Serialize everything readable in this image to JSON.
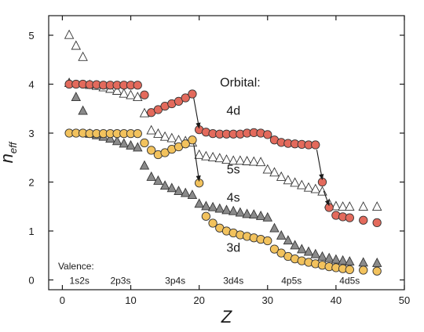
{
  "chart_data": {
    "type": "scatter",
    "xlabel": "Z",
    "ylabel": "n",
    "ylabel_sub": "eff",
    "xlim": [
      -2,
      50
    ],
    "ylim": [
      -0.2,
      5.4
    ],
    "x_ticks": [
      0,
      10,
      20,
      30,
      40,
      50
    ],
    "y_ticks": [
      0,
      1,
      2,
      3,
      4,
      5
    ],
    "legend_title": "Orbital:",
    "valence_label": "Valence:",
    "valence_groups": [
      {
        "label": "1s2s",
        "x": 2.5
      },
      {
        "label": "2p3s",
        "x": 8.5
      },
      {
        "label": "3p4s",
        "x": 16.5
      },
      {
        "label": "3d4s",
        "x": 25.0
      },
      {
        "label": "4p5s",
        "x": 33.5
      },
      {
        "label": "4d5s",
        "x": 42.0
      }
    ],
    "colors": {
      "d4": "#e36a5c",
      "d3": "#f2c25d",
      "s5": "#ffffff",
      "s4": "#8a8a8a",
      "edge": "#333333"
    },
    "series": [
      {
        "name": "4d",
        "marker": "circle",
        "color": "#e36a5c",
        "points": [
          [
            1,
            4.0
          ],
          [
            2,
            4.0
          ],
          [
            3,
            4.0
          ],
          [
            4,
            3.99
          ],
          [
            5,
            3.99
          ],
          [
            6,
            3.98
          ],
          [
            7,
            3.98
          ],
          [
            8,
            3.98
          ],
          [
            9,
            3.98
          ],
          [
            10,
            3.98
          ],
          [
            11,
            3.98
          ],
          [
            12,
            3.78
          ],
          [
            13,
            3.42
          ],
          [
            14,
            3.48
          ],
          [
            15,
            3.55
          ],
          [
            16,
            3.6
          ],
          [
            17,
            3.65
          ],
          [
            18,
            3.72
          ],
          [
            19,
            3.8
          ],
          [
            20,
            3.07
          ],
          [
            21,
            3.02
          ],
          [
            22,
            2.99
          ],
          [
            23,
            2.98
          ],
          [
            24,
            2.98
          ],
          [
            25,
            2.98
          ],
          [
            26,
            2.98
          ],
          [
            27,
            3.0
          ],
          [
            28,
            3.01
          ],
          [
            29,
            3.0
          ],
          [
            30,
            2.97
          ],
          [
            31,
            2.86
          ],
          [
            32,
            2.81
          ],
          [
            33,
            2.79
          ],
          [
            34,
            2.78
          ],
          [
            35,
            2.77
          ],
          [
            36,
            2.76
          ],
          [
            37,
            2.76
          ],
          [
            38,
            2.0
          ],
          [
            39,
            1.48
          ],
          [
            40,
            1.32
          ],
          [
            41,
            1.29
          ],
          [
            42,
            1.27
          ],
          [
            44,
            1.22
          ],
          [
            46,
            1.17
          ]
        ]
      },
      {
        "name": "3d",
        "marker": "circle",
        "color": "#f2c25d",
        "points": [
          [
            1,
            3.0
          ],
          [
            2,
            3.0
          ],
          [
            3,
            3.0
          ],
          [
            4,
            2.99
          ],
          [
            5,
            2.99
          ],
          [
            6,
            2.99
          ],
          [
            7,
            2.99
          ],
          [
            8,
            2.99
          ],
          [
            9,
            2.99
          ],
          [
            10,
            2.99
          ],
          [
            11,
            2.99
          ],
          [
            12,
            2.8
          ],
          [
            13,
            2.65
          ],
          [
            14,
            2.56
          ],
          [
            15,
            2.6
          ],
          [
            16,
            2.67
          ],
          [
            17,
            2.72
          ],
          [
            18,
            2.78
          ],
          [
            19,
            2.86
          ],
          [
            20,
            1.98
          ],
          [
            21,
            1.3
          ],
          [
            22,
            1.16
          ],
          [
            23,
            1.06
          ],
          [
            24,
            1.0
          ],
          [
            25,
            0.96
          ],
          [
            26,
            0.92
          ],
          [
            27,
            0.89
          ],
          [
            28,
            0.86
          ],
          [
            29,
            0.83
          ],
          [
            30,
            0.8
          ],
          [
            31,
            0.63
          ],
          [
            32,
            0.55
          ],
          [
            33,
            0.48
          ],
          [
            34,
            0.43
          ],
          [
            35,
            0.39
          ],
          [
            36,
            0.36
          ],
          [
            37,
            0.33
          ],
          [
            38,
            0.3
          ],
          [
            39,
            0.27
          ],
          [
            40,
            0.25
          ],
          [
            41,
            0.23
          ],
          [
            42,
            0.21
          ],
          [
            44,
            0.2
          ],
          [
            46,
            0.18
          ]
        ]
      },
      {
        "name": "5s",
        "marker": "triangle",
        "color": "#ffffff",
        "points": [
          [
            1,
            5.0
          ],
          [
            2,
            4.78
          ],
          [
            3,
            4.55
          ],
          [
            4,
            3.98
          ],
          [
            5,
            3.96
          ],
          [
            6,
            3.93
          ],
          [
            7,
            3.9
          ],
          [
            8,
            3.86
          ],
          [
            9,
            3.8
          ],
          [
            10,
            3.77
          ],
          [
            11,
            3.73
          ],
          [
            12,
            3.4
          ],
          [
            13,
            3.05
          ],
          [
            14,
            2.98
          ],
          [
            15,
            2.92
          ],
          [
            16,
            2.89
          ],
          [
            17,
            2.85
          ],
          [
            18,
            2.83
          ],
          [
            19,
            2.8
          ],
          [
            20,
            2.55
          ],
          [
            21,
            2.52
          ],
          [
            22,
            2.5
          ],
          [
            23,
            2.48
          ],
          [
            24,
            2.45
          ],
          [
            25,
            2.43
          ],
          [
            26,
            2.43
          ],
          [
            27,
            2.42
          ],
          [
            28,
            2.41
          ],
          [
            29,
            2.4
          ],
          [
            30,
            2.25
          ],
          [
            31,
            2.19
          ],
          [
            32,
            2.1
          ],
          [
            33,
            2.03
          ],
          [
            34,
            1.98
          ],
          [
            35,
            1.93
          ],
          [
            36,
            1.88
          ],
          [
            37,
            1.85
          ],
          [
            38,
            1.8
          ],
          [
            39,
            1.55
          ],
          [
            40,
            1.5
          ],
          [
            41,
            1.49
          ],
          [
            42,
            1.49
          ],
          [
            44,
            1.49
          ],
          [
            46,
            1.49
          ]
        ]
      },
      {
        "name": "4s",
        "marker": "triangle",
        "color": "#8a8a8a",
        "points": [
          [
            1,
            4.02
          ],
          [
            2,
            3.73
          ],
          [
            3,
            3.45
          ],
          [
            4,
            2.98
          ],
          [
            5,
            2.95
          ],
          [
            6,
            2.92
          ],
          [
            7,
            2.88
          ],
          [
            8,
            2.83
          ],
          [
            9,
            2.78
          ],
          [
            10,
            2.74
          ],
          [
            11,
            2.7
          ],
          [
            12,
            2.33
          ],
          [
            13,
            2.1
          ],
          [
            14,
            2.02
          ],
          [
            15,
            1.92
          ],
          [
            16,
            1.87
          ],
          [
            17,
            1.81
          ],
          [
            18,
            1.77
          ],
          [
            19,
            1.73
          ],
          [
            20,
            1.55
          ],
          [
            21,
            1.5
          ],
          [
            22,
            1.48
          ],
          [
            23,
            1.45
          ],
          [
            24,
            1.42
          ],
          [
            25,
            1.4
          ],
          [
            26,
            1.37
          ],
          [
            27,
            1.34
          ],
          [
            28,
            1.33
          ],
          [
            29,
            1.3
          ],
          [
            30,
            1.27
          ],
          [
            31,
            1.05
          ],
          [
            32,
            0.9
          ],
          [
            33,
            0.8
          ],
          [
            34,
            0.7
          ],
          [
            35,
            0.62
          ],
          [
            36,
            0.57
          ],
          [
            37,
            0.52
          ],
          [
            38,
            0.47
          ],
          [
            39,
            0.44
          ],
          [
            40,
            0.41
          ],
          [
            41,
            0.39
          ],
          [
            42,
            0.37
          ],
          [
            44,
            0.35
          ],
          [
            46,
            0.34
          ]
        ]
      }
    ],
    "annotations": [
      {
        "text": "4d",
        "x": 25.0,
        "y": 3.38
      },
      {
        "text": "5s",
        "x": 25.0,
        "y": 2.18
      },
      {
        "text": "4s",
        "x": 25.0,
        "y": 1.6
      },
      {
        "text": "3d",
        "x": 25.0,
        "y": 0.58
      }
    ],
    "legend_title_pos": {
      "x": 26.0,
      "y": 3.95
    },
    "valence_label_pos": {
      "x": 2.0,
      "y": 0.22
    },
    "arrows": [
      {
        "from": [
          19.2,
          3.72
        ],
        "to": [
          20.0,
          3.1
        ]
      },
      {
        "from": [
          19.2,
          2.78
        ],
        "to": [
          20.0,
          2.02
        ]
      },
      {
        "from": [
          37.2,
          2.66
        ],
        "to": [
          38.0,
          2.05
        ]
      },
      {
        "from": [
          38.2,
          1.82
        ],
        "to": [
          39.0,
          1.52
        ]
      }
    ]
  }
}
